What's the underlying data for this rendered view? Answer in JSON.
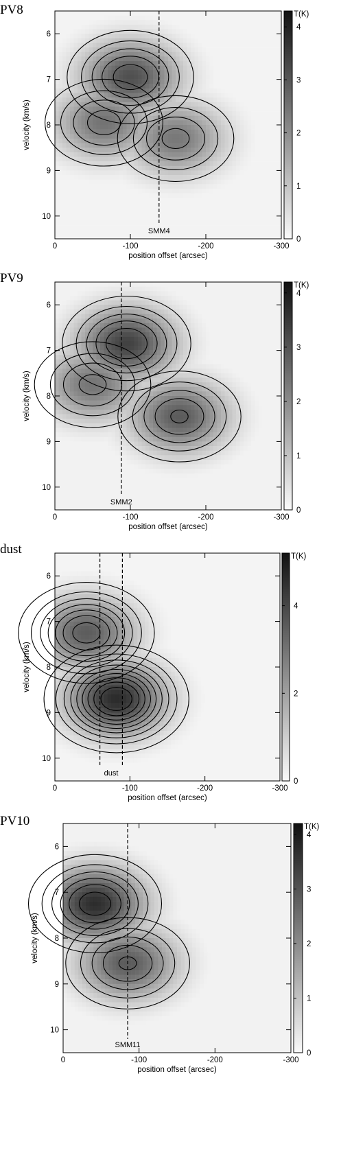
{
  "chart_data": [
    {
      "type": "heatmap",
      "panel_label": "PV8",
      "xlabel": "position offset (arcsec)",
      "ylabel": "velocity (km/s)",
      "xlim": [
        0,
        -300
      ],
      "ylim": [
        5.5,
        10.5
      ],
      "x_ticks": [
        0,
        -100,
        -200,
        -300
      ],
      "x_tick_labels": [
        "0",
        "-100",
        "-200",
        "-300"
      ],
      "y_ticks": [
        6,
        7,
        8,
        9,
        10
      ],
      "colorbar": {
        "label": "T(K)",
        "ticks": [
          0,
          1,
          2,
          3,
          4
        ],
        "max": 4.3
      },
      "markers": [
        {
          "label": "SMM4",
          "x": -138
        }
      ],
      "emission_peaks": [
        {
          "x": -100,
          "y": 6.95,
          "T": 3.4
        },
        {
          "x": -65,
          "y": 7.95,
          "T": 2.7
        },
        {
          "x": -160,
          "y": 8.3,
          "T": 2.6
        }
      ],
      "contour_levels": [
        0.6,
        1.2,
        1.8,
        2.4,
        3.0
      ]
    },
    {
      "type": "heatmap",
      "panel_label": "PV9",
      "xlabel": "position offset (arcsec)",
      "ylabel": "velocity (km/s)",
      "xlim": [
        0,
        -300
      ],
      "ylim": [
        5.5,
        10.5
      ],
      "x_ticks": [
        0,
        -100,
        -200,
        -300
      ],
      "x_tick_labels": [
        "0",
        "-100",
        "-200",
        "-300"
      ],
      "y_ticks": [
        6,
        7,
        8,
        9,
        10
      ],
      "colorbar": {
        "label": "T(K)",
        "ticks": [
          0,
          1,
          2,
          3,
          4
        ],
        "max": 4.2
      },
      "markers": [
        {
          "label": "SMM2",
          "x": -88
        }
      ],
      "emission_peaks": [
        {
          "x": -95,
          "y": 6.85,
          "T": 3.6
        },
        {
          "x": -50,
          "y": 7.75,
          "T": 2.6
        },
        {
          "x": -165,
          "y": 8.45,
          "T": 3.1
        }
      ],
      "contour_levels": [
        0.6,
        1.2,
        1.8,
        2.4,
        3.0,
        3.6
      ]
    },
    {
      "type": "heatmap",
      "panel_label": "dust",
      "xlabel": "position offset (arcsec)",
      "ylabel": "velocity (km/s)",
      "xlim": [
        0,
        -300
      ],
      "ylim": [
        5.5,
        10.5
      ],
      "x_ticks": [
        0,
        -100,
        -200,
        -300
      ],
      "x_tick_labels": [
        "0",
        "-100",
        "-200",
        "-300"
      ],
      "y_ticks": [
        6,
        7,
        8,
        9,
        10
      ],
      "colorbar": {
        "label": "T(K)",
        "ticks": [
          0,
          2,
          4
        ],
        "max": 5.2
      },
      "markers": [
        {
          "label": "dust",
          "x_range": [
            -60,
            -90
          ]
        }
      ],
      "emission_peaks": [
        {
          "x": -42,
          "y": 7.25,
          "T": 3.8
        },
        {
          "x": -82,
          "y": 8.7,
          "T": 5.0
        }
      ],
      "contour_levels": [
        0.5,
        1.0,
        1.5,
        2.0,
        2.5,
        3.0,
        3.5,
        4.0,
        4.5
      ]
    },
    {
      "type": "heatmap",
      "panel_label": "PV10",
      "xlabel": "position offset (arcsec)",
      "ylabel": "velocity (km/s)",
      "xlim": [
        0,
        -300
      ],
      "ylim": [
        5.5,
        10.5
      ],
      "x_ticks": [
        0,
        -100,
        -200,
        -300
      ],
      "x_tick_labels": [
        "0",
        "-100",
        "-200",
        "-300"
      ],
      "y_ticks": [
        6,
        7,
        8,
        9,
        10
      ],
      "colorbar": {
        "label": "T(K)",
        "ticks": [
          0,
          1,
          2,
          3,
          4
        ],
        "max": 4.2
      },
      "markers": [
        {
          "label": "SMM11",
          "x": -85
        }
      ],
      "emission_peaks": [
        {
          "x": -42,
          "y": 7.25,
          "T": 4.0
        },
        {
          "x": -85,
          "y": 8.55,
          "T": 3.1
        }
      ],
      "contour_levels": [
        0.6,
        1.2,
        1.8,
        2.4,
        3.0,
        3.6
      ]
    }
  ]
}
